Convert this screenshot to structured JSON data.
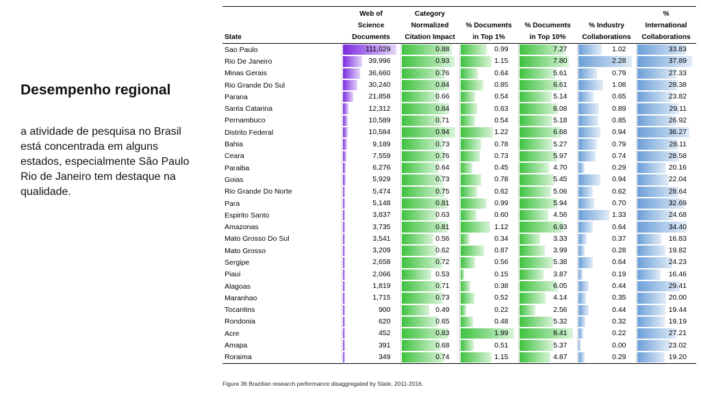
{
  "slide": {
    "title": "Desempenho regional",
    "text": "a atividade de pesquisa no Brasil\nestá concentrada em alguns\nestados, especialmente São Paulo\nRio de Janeiro tem destaque na\nqualidade."
  },
  "caption": "Figure 36 Brazilian research performance disaggregated by State, 2011-2016.",
  "colors": {
    "documents_bar": "#7b2be0",
    "green_bar": "#3ec23e",
    "blue_bar": "#6b9fd8"
  },
  "chart_data": {
    "type": "table",
    "columns": [
      "State",
      "Web of\nScience\nDocuments",
      "Category\nNormalized\nCitation Impact",
      "% Documents\nin Top 1%",
      "% Documents\nin Top 10%",
      "% Industry\nCollaborations",
      "%\nInternational\nCollaborations"
    ],
    "rows": [
      [
        "Sao Paulo",
        "111,029",
        "0.88",
        "0.99",
        "7.27",
        "1.02",
        "33.83"
      ],
      [
        "Rio De Janeiro",
        "39,996",
        "0.93",
        "1.15",
        "7.80",
        "2.28",
        "37.89"
      ],
      [
        "Minas Gerais",
        "36,660",
        "0.76",
        "0.64",
        "5.61",
        "0.79",
        "27.33"
      ],
      [
        "Rio Grande Do Sul",
        "30,240",
        "0.84",
        "0.85",
        "6.61",
        "1.08",
        "28.38"
      ],
      [
        "Parana",
        "21,858",
        "0.66",
        "0.54",
        "5.14",
        "0.65",
        "23.82"
      ],
      [
        "Santa Catarina",
        "12,312",
        "0.84",
        "0.63",
        "6.08",
        "0.89",
        "29.11"
      ],
      [
        "Pernambuco",
        "10,589",
        "0.71",
        "0.54",
        "5.18",
        "0.85",
        "26.92"
      ],
      [
        "Distrito Federal",
        "10,584",
        "0.94",
        "1.22",
        "6.68",
        "0.94",
        "36.27"
      ],
      [
        "Bahia",
        "9,189",
        "0.73",
        "0.78",
        "5.27",
        "0.79",
        "28.11"
      ],
      [
        "Ceara",
        "7,559",
        "0.76",
        "0.73",
        "5.97",
        "0.74",
        "28.58"
      ],
      [
        "Paraiba",
        "6,276",
        "0.64",
        "0.45",
        "4.70",
        "0.29",
        "20.16"
      ],
      [
        "Goias",
        "5,929",
        "0.73",
        "0.78",
        "5.45",
        "0.94",
        "22.04"
      ],
      [
        "Rio Grande Do Norte",
        "5,474",
        "0.75",
        "0.62",
        "5.06",
        "0.62",
        "28.64"
      ],
      [
        "Para",
        "5,148",
        "0.81",
        "0.99",
        "5.94",
        "0.70",
        "32.69"
      ],
      [
        "Espirito Santo",
        "3,837",
        "0.63",
        "0.60",
        "4.56",
        "1.33",
        "24.68"
      ],
      [
        "Amazonas",
        "3,735",
        "0.81",
        "1.12",
        "6.93",
        "0.64",
        "34.40"
      ],
      [
        "Mato Grosso Do Sul",
        "3,541",
        "0.56",
        "0.34",
        "3.33",
        "0.37",
        "16.83"
      ],
      [
        "Mato Grosso",
        "3,209",
        "0.62",
        "0.87",
        "3.99",
        "0.28",
        "19.82"
      ],
      [
        "Sergipe",
        "2,658",
        "0.72",
        "0.56",
        "5.38",
        "0.64",
        "24.23"
      ],
      [
        "Piaui",
        "2,066",
        "0.53",
        "0.15",
        "3.87",
        "0.19",
        "16.46"
      ],
      [
        "Alagoas",
        "1,819",
        "0.71",
        "0.38",
        "6.05",
        "0.44",
        "29.41"
      ],
      [
        "Maranhao",
        "1,715",
        "0.73",
        "0.52",
        "4.14",
        "0.35",
        "20.00"
      ],
      [
        "Tocantins",
        "900",
        "0.49",
        "0.22",
        "2.56",
        "0.44",
        "19.44"
      ],
      [
        "Rondonia",
        "620",
        "0.65",
        "0.48",
        "5.32",
        "0.32",
        "19.19"
      ],
      [
        "Acre",
        "452",
        "0.83",
        "1.99",
        "8.41",
        "0.22",
        "27.21"
      ],
      [
        "Amapa",
        "391",
        "0.68",
        "0.51",
        "5.37",
        "0.00",
        "23.02"
      ],
      [
        "Roraima",
        "349",
        "0.74",
        "1.15",
        "4.87",
        "0.29",
        "19.20"
      ]
    ]
  }
}
